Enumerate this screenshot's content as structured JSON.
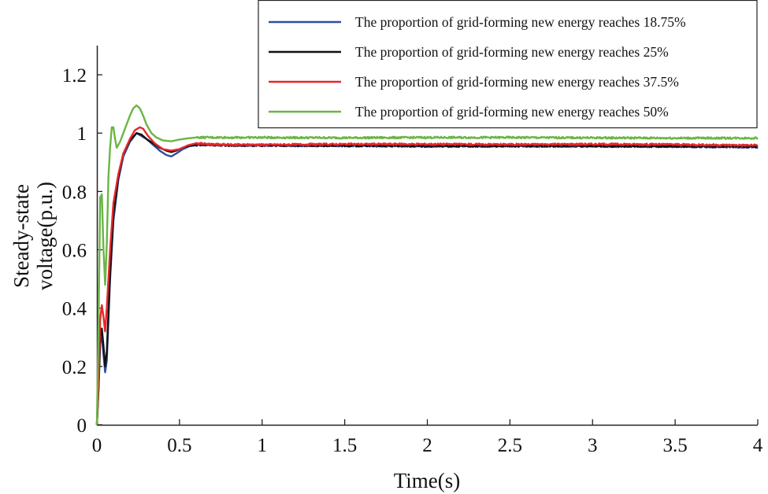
{
  "chart_data": {
    "type": "line",
    "xlabel": "Time(s)",
    "ylabel_lines": [
      "Steady-state",
      "voltage(p.u.)"
    ],
    "xlim": [
      0,
      4
    ],
    "ylim": [
      0,
      1.3
    ],
    "x_ticks": [
      0,
      0.5,
      1,
      1.5,
      2,
      2.5,
      3,
      3.5,
      4
    ],
    "x_tick_labels": [
      "0",
      "0.5",
      "1",
      "1.5",
      "2",
      "2.5",
      "3",
      "3.5",
      "4"
    ],
    "y_ticks": [
      0,
      0.2,
      0.4,
      0.6,
      0.8,
      1,
      1.2
    ],
    "y_tick_labels": [
      "0",
      "0.2",
      "0.4",
      "0.6",
      "0.8",
      "1",
      "1.2"
    ],
    "grid": false,
    "legend_position": "top-right",
    "series": [
      {
        "name": "The proportion of grid-forming new energy reaches 18.75%",
        "color": "#2e4d9b",
        "x": [
          0,
          0.01,
          0.02,
          0.03,
          0.04,
          0.05,
          0.06,
          0.08,
          0.1,
          0.13,
          0.16,
          0.2,
          0.24,
          0.27,
          0.3,
          0.34,
          0.38,
          0.42,
          0.45,
          0.48,
          0.52,
          0.56,
          0.62,
          0.7,
          0.8,
          1,
          1.5,
          2,
          2.5,
          3,
          3.5,
          4
        ],
        "y": [
          0,
          0.12,
          0.28,
          0.3,
          0.24,
          0.18,
          0.22,
          0.5,
          0.7,
          0.84,
          0.92,
          0.97,
          1.0,
          0.99,
          0.98,
          0.96,
          0.94,
          0.925,
          0.92,
          0.93,
          0.945,
          0.955,
          0.96,
          0.96,
          0.958,
          0.958,
          0.957,
          0.955,
          0.955,
          0.955,
          0.954,
          0.952
        ]
      },
      {
        "name": "The proportion of grid-forming new energy reaches 25%",
        "color": "#111111",
        "x": [
          0,
          0.01,
          0.02,
          0.03,
          0.04,
          0.05,
          0.06,
          0.08,
          0.1,
          0.13,
          0.16,
          0.2,
          0.24,
          0.27,
          0.3,
          0.34,
          0.38,
          0.42,
          0.45,
          0.48,
          0.52,
          0.56,
          0.62,
          0.7,
          0.8,
          1,
          1.5,
          2,
          2.5,
          3,
          3.5,
          4
        ],
        "y": [
          0,
          0.13,
          0.3,
          0.33,
          0.27,
          0.2,
          0.25,
          0.52,
          0.72,
          0.85,
          0.93,
          0.975,
          1.0,
          0.995,
          0.98,
          0.965,
          0.95,
          0.94,
          0.935,
          0.94,
          0.95,
          0.957,
          0.96,
          0.96,
          0.958,
          0.958,
          0.957,
          0.956,
          0.956,
          0.956,
          0.955,
          0.954
        ]
      },
      {
        "name": "The proportion of grid-forming new energy reaches 37.5%",
        "color": "#e5272b",
        "x": [
          0,
          0.01,
          0.02,
          0.03,
          0.04,
          0.05,
          0.06,
          0.08,
          0.1,
          0.13,
          0.16,
          0.2,
          0.23,
          0.26,
          0.28,
          0.31,
          0.35,
          0.4,
          0.45,
          0.5,
          0.55,
          0.6,
          0.68,
          0.8,
          1,
          1.5,
          2,
          2.5,
          3,
          3.5,
          4
        ],
        "y": [
          0,
          0.15,
          0.36,
          0.41,
          0.37,
          0.32,
          0.4,
          0.6,
          0.76,
          0.86,
          0.93,
          0.98,
          1.01,
          1.02,
          1.015,
          0.99,
          0.965,
          0.945,
          0.94,
          0.945,
          0.958,
          0.965,
          0.962,
          0.96,
          0.96,
          0.962,
          0.962,
          0.961,
          0.962,
          0.961,
          0.958
        ]
      },
      {
        "name": "The proportion of grid-forming new energy reaches 50%",
        "color": "#6ab545",
        "x": [
          0,
          0.01,
          0.02,
          0.03,
          0.04,
          0.05,
          0.06,
          0.07,
          0.08,
          0.09,
          0.1,
          0.11,
          0.12,
          0.14,
          0.16,
          0.18,
          0.2,
          0.22,
          0.24,
          0.26,
          0.28,
          0.3,
          0.33,
          0.36,
          0.4,
          0.45,
          0.5,
          0.55,
          0.6,
          0.7,
          1,
          1.5,
          2,
          2.5,
          3,
          3.5,
          4
        ],
        "y": [
          0,
          0.35,
          0.78,
          0.79,
          0.6,
          0.48,
          0.62,
          0.85,
          0.95,
          1.02,
          1.02,
          0.98,
          0.95,
          0.97,
          1.0,
          1.03,
          1.06,
          1.085,
          1.095,
          1.085,
          1.06,
          1.03,
          1.0,
          0.985,
          0.975,
          0.972,
          0.978,
          0.982,
          0.985,
          0.985,
          0.985,
          0.984,
          0.985,
          0.985,
          0.984,
          0.983,
          0.983
        ]
      }
    ]
  }
}
